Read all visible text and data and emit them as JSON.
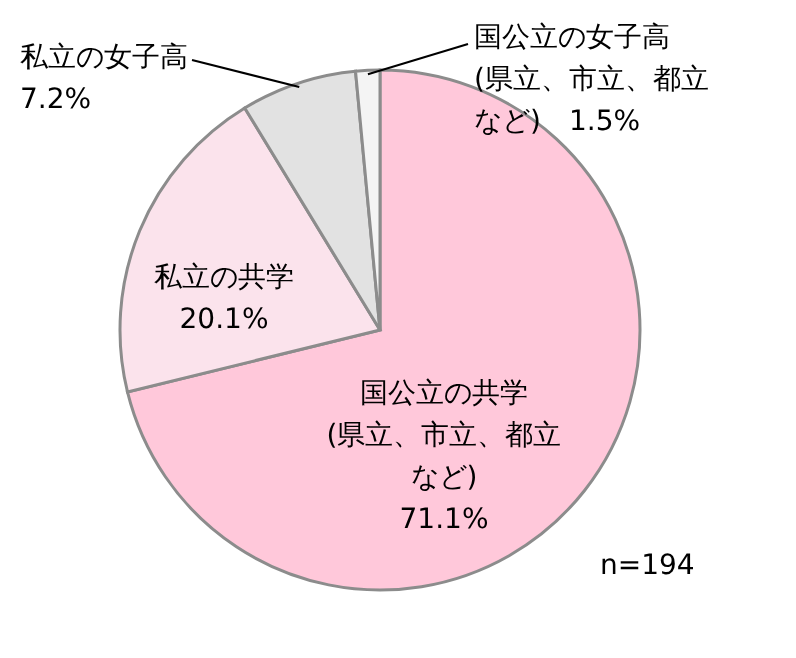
{
  "chart_data": {
    "type": "pie",
    "categories": [
      "国公立の共学(県立、市立、都立など)",
      "私立の共学",
      "私立の女子高",
      "国公立の女子高(県立、市立、都立など)"
    ],
    "values": [
      71.1,
      20.1,
      7.2,
      1.5
    ],
    "value_labels": [
      "71.1%",
      "20.1%",
      "7.2%",
      "1.5%"
    ],
    "colors": [
      "#ffc8da",
      "#fbe3ec",
      "#e2e2e2",
      "#f4f4f4"
    ],
    "annotations": [
      "n=194"
    ]
  }
}
